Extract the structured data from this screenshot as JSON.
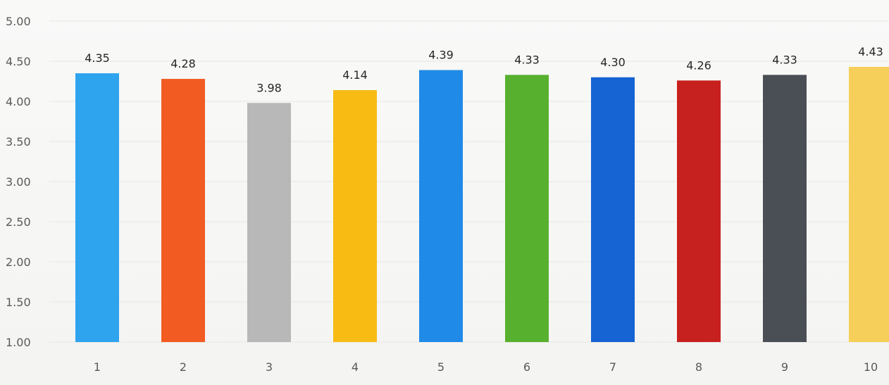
{
  "chart_data": {
    "type": "bar",
    "categories": [
      "1",
      "2",
      "3",
      "4",
      "5",
      "6",
      "7",
      "8",
      "9",
      "10"
    ],
    "values": [
      4.35,
      4.28,
      3.98,
      4.14,
      4.39,
      4.33,
      4.3,
      4.26,
      4.33,
      4.43
    ],
    "value_labels": [
      "4.35",
      "4.28",
      "3.98",
      "4.14",
      "4.39",
      "4.33",
      "4.30",
      "4.26",
      "4.33",
      "4.43"
    ],
    "y_ticks": [
      "1.00",
      "1.50",
      "2.00",
      "2.50",
      "3.00",
      "3.50",
      "4.00",
      "4.50",
      "5.00"
    ],
    "ylim": [
      1.0,
      5.0
    ],
    "grid": true,
    "colors": [
      "#2ea3ee",
      "#f25b22",
      "#b8b8b8",
      "#f8bb14",
      "#1f8ae8",
      "#58b02f",
      "#1663d3",
      "#c7211f",
      "#4a4e55",
      "#f6cf5a"
    ]
  }
}
